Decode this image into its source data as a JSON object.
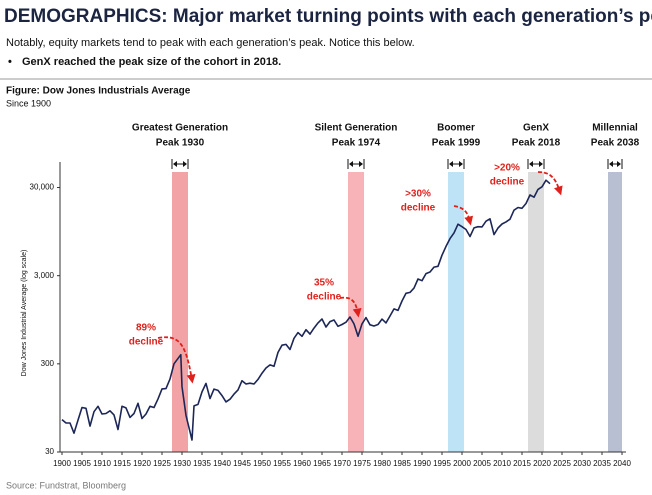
{
  "header": {
    "title": "DEMOGRAPHICS: Major market turning points with each generation’s peak",
    "subtitle": "Notably, equity markets tend to peak with each generation’s peak. Notice this below.",
    "bullet": "GenX reached the peak size of the cohort in 2018."
  },
  "chart_data": {
    "type": "line",
    "title": "Figure: Dow Jones Industrials Average",
    "subtitle": "Since 1900",
    "y_label": "Dow Jones Industrial Average (log scale)",
    "log_scale": true,
    "color": "#1c2757",
    "xlim": [
      1900,
      2040
    ],
    "xticks": [
      1900,
      1905,
      1910,
      1915,
      1920,
      1925,
      1930,
      1935,
      1940,
      1945,
      1950,
      1955,
      1960,
      1965,
      1970,
      1975,
      1980,
      1985,
      1990,
      1995,
      2000,
      2005,
      2010,
      2015,
      2020,
      2025,
      2030,
      2035,
      2040
    ],
    "ylim": [
      30,
      45000
    ],
    "yticks": [
      30,
      300,
      {
        "value": 3000,
        "label": "3,000"
      },
      {
        "value": 30000,
        "label": "30,000"
      }
    ],
    "x": [
      1900,
      1901,
      1902,
      1903,
      1904,
      1905,
      1906,
      1907,
      1908,
      1909,
      1910,
      1911,
      1912,
      1913,
      1914,
      1915,
      1916,
      1917,
      1918,
      1919,
      1920,
      1921,
      1922,
      1923,
      1924,
      1925,
      1926,
      1927,
      1928,
      1929.7,
      1930,
      1931,
      1932.5,
      1933,
      1934,
      1935,
      1936,
      1937,
      1938,
      1939,
      1940,
      1941,
      1942,
      1943,
      1944,
      1945,
      1946,
      1947,
      1948,
      1949,
      1950,
      1951,
      1952,
      1953,
      1954,
      1955,
      1956,
      1957,
      1958,
      1959,
      1960,
      1961,
      1962,
      1963,
      1964,
      1965,
      1966,
      1967,
      1968,
      1969,
      1970,
      1971,
      1972,
      1973,
      1974,
      1975,
      1976,
      1977,
      1978,
      1979,
      1980,
      1981,
      1982,
      1983,
      1984,
      1985,
      1986,
      1987,
      1988,
      1989,
      1990,
      1991,
      1992,
      1993,
      1994,
      1995,
      1996,
      1997,
      1998,
      1999,
      2000,
      2001,
      2002,
      2003,
      2004,
      2005,
      2006,
      2007,
      2008,
      2009,
      2010,
      2011,
      2012,
      2013,
      2014,
      2015,
      2016,
      2017,
      2018,
      2019,
      2020,
      2021,
      2022
    ],
    "values": [
      70,
      64,
      64,
      49,
      69,
      96,
      94,
      59,
      86,
      99,
      81,
      82,
      88,
      79,
      54,
      99,
      95,
      74,
      82,
      107,
      72,
      81,
      99,
      96,
      120,
      156,
      157,
      202,
      300,
      381,
      165,
      78,
      41,
      100,
      104,
      144,
      180,
      121,
      155,
      150,
      131,
      111,
      119,
      136,
      152,
      193,
      177,
      181,
      177,
      200,
      235,
      269,
      292,
      281,
      404,
      488,
      499,
      436,
      584,
      679,
      616,
      731,
      652,
      763,
      874,
      969,
      786,
      905,
      944,
      800,
      839,
      890,
      1020,
      851,
      616,
      852,
      1005,
      831,
      805,
      839,
      964,
      875,
      1047,
      1259,
      1212,
      1547,
      1896,
      1939,
      2169,
      2753,
      2634,
      3169,
      3301,
      3754,
      3834,
      5117,
      6448,
      7908,
      9181,
      11497,
      10787,
      10022,
      8342,
      10454,
      10783,
      10718,
      12463,
      13265,
      8776,
      10428,
      11578,
      12218,
      13104,
      16577,
      17823,
      17425,
      19763,
      24719,
      23327,
      28538,
      30606,
      36338,
      33147
    ],
    "bands": [
      {
        "label": "Greatest Generation",
        "peak": "Peak 1930",
        "span": [
          1927.5,
          1931.5
        ],
        "color": "#f2a3a6"
      },
      {
        "label": "Silent Generation",
        "peak": "Peak 1974",
        "span": [
          1971.5,
          1975.5
        ],
        "color": "#f8b3b8"
      },
      {
        "label": "Boomer",
        "peak": "Peak 1999",
        "span": [
          1996.5,
          2000.5
        ],
        "color": "#bfe3f6"
      },
      {
        "label": "GenX",
        "peak": "Peak 2018",
        "span": [
          2016.5,
          2020.5
        ],
        "color": "#dcdcdc"
      },
      {
        "label": "Millennial",
        "peak": "Peak 2038",
        "span": [
          2036.5,
          2040
        ],
        "color": "#b9bfd3"
      }
    ],
    "annotations": [
      [
        "89%",
        "decline"
      ],
      [
        "35%",
        "decline"
      ],
      [
        ">30%",
        "decline"
      ],
      [
        ">20%",
        "decline"
      ]
    ],
    "annotation_color": "#e0201b"
  },
  "source": "Source: Fundstrat, Bloomberg"
}
